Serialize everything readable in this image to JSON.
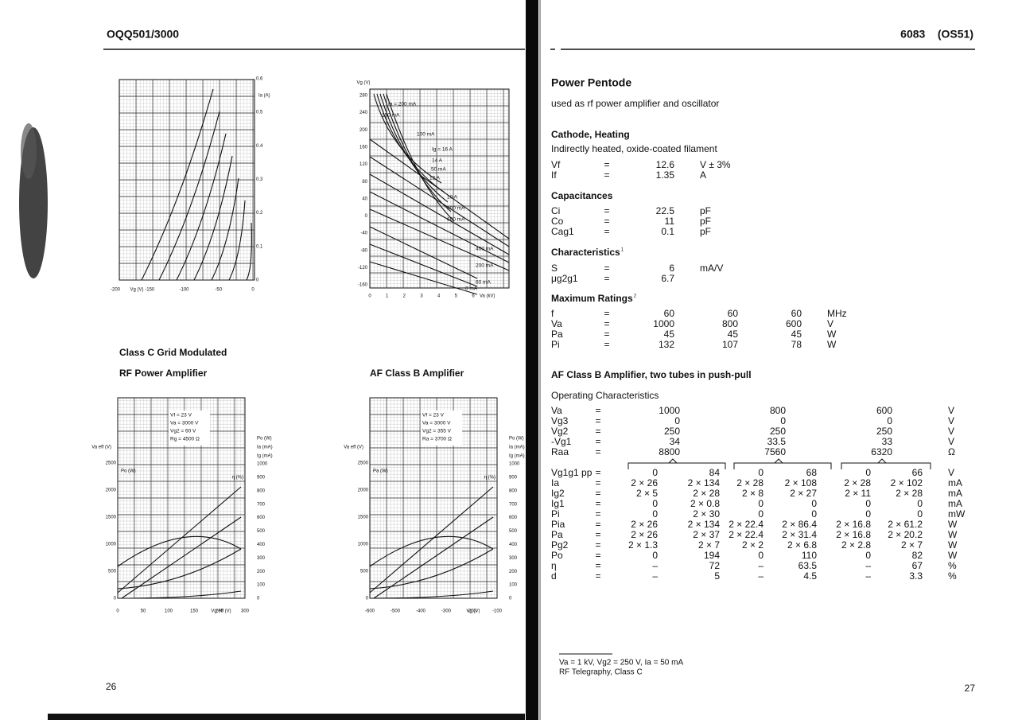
{
  "left_page": {
    "header": "OQQ501/3000",
    "page_number": "26",
    "section_title": "Class C Grid Modulated",
    "rf_title": "RF Power Amplifier",
    "af_title": "AF Class B Amplifier",
    "figures": [
      {
        "y_label": "Ia (A)",
        "x_label": "Vg (V)",
        "y_ticks_right": [
          "0.6",
          "0.5",
          "0.4",
          "0.3",
          "0.2",
          "0.1",
          "0"
        ],
        "x_ticks": [
          "-200",
          "-150",
          "-100",
          "-50",
          "0"
        ]
      },
      {
        "y_label": "Vg (V)",
        "x_label": "Va (kV)",
        "y_ticks_left": [
          "280",
          "240",
          "200",
          "160",
          "120",
          "80",
          "40",
          "0",
          "-40",
          "-80",
          "-120",
          "-160"
        ],
        "x_ticks": [
          "0",
          "1",
          "2",
          "3",
          "4",
          "5",
          "6"
        ],
        "curve_labels": [
          "Ia = 200 mA",
          "150 mA",
          "100 mA",
          "Ig = 16 A",
          "14 A",
          "50 mA",
          "12 A",
          "10 A",
          "800 mA",
          "600 mA",
          "400 mA",
          "200 mA",
          "60 mA",
          "0 mA"
        ]
      },
      {
        "y_label": "Va eff (V)",
        "x_label": "Vg eff (V)",
        "right_labels": [
          "Po (W)",
          "Ia (mA)",
          "Ig (mA)"
        ],
        "inner_labels": [
          "Po (W)",
          "η (%)"
        ],
        "y_ticks_left": [
          "2500",
          "2000",
          "1500",
          "1000",
          "500",
          "0"
        ],
        "y_ticks_right": [
          "1000",
          "900",
          "800",
          "700",
          "600",
          "500",
          "400",
          "300",
          "200",
          "100",
          "0"
        ],
        "x_ticks": [
          "0",
          "50",
          "100",
          "150",
          "200",
          "300"
        ],
        "annotation": [
          "Vf = 23 V",
          "Va = 3000 V",
          "Vg2 = 60 V",
          "Rg = 4500 Ω"
        ]
      },
      {
        "y_label": "Va eff (V)",
        "x_label": "Vg (V)",
        "right_labels": [
          "Po (W)",
          "Ia (mA)",
          "Ig (mA)"
        ],
        "inner_labels": [
          "Pa (W)",
          "η (%)"
        ],
        "y_ticks_left": [
          "2500",
          "2000",
          "1500",
          "1000",
          "500",
          "0"
        ],
        "y_ticks_right": [
          "1000",
          "900",
          "800",
          "700",
          "600",
          "500",
          "400",
          "300",
          "200",
          "100",
          "0"
        ],
        "x_ticks": [
          "-600",
          "-500",
          "-400",
          "-300",
          "-200",
          "-100"
        ],
        "annotation": [
          "Vf = 23 V",
          "Va = 3000 V",
          "Vg2 = 355 V",
          "Ra = 3700 Ω"
        ]
      }
    ]
  },
  "right_page": {
    "header": "6083    (OS51)",
    "page_number": "27",
    "title": "Power Pentode",
    "subtitle": "used as rf power amplifier and oscillator",
    "sections": [
      {
        "heading": "Cathode, Heating",
        "text": "Indirectly heated, oxide-coated filament",
        "rows": [
          [
            "Vf",
            "=",
            "12.6",
            "V ± 3%"
          ],
          [
            "If",
            "=",
            "1.35",
            "A"
          ]
        ]
      },
      {
        "heading": "Capacitances",
        "rows": [
          [
            "Ci",
            "=",
            "22.5",
            "pF"
          ],
          [
            "Co",
            "=",
            "11",
            "pF"
          ],
          [
            "Cag1",
            "=",
            "0.1",
            "pF"
          ]
        ]
      },
      {
        "heading": "Characteristics",
        "note": "1",
        "rows": [
          [
            "S",
            "=",
            "6",
            "mA/V"
          ],
          [
            "μg2g1",
            "=",
            "6.7",
            ""
          ]
        ]
      },
      {
        "heading": "Maximum Ratings",
        "note": "2",
        "rows": [
          [
            "f",
            "=",
            "60",
            "60",
            "60",
            "MHz"
          ],
          [
            "Va",
            "=",
            "1000",
            "800",
            "600",
            "V"
          ],
          [
            "Pa",
            "=",
            "45",
            "45",
            "45",
            "W"
          ],
          [
            "Pi",
            "=",
            "132",
            "107",
            "78",
            "W"
          ]
        ]
      }
    ],
    "af_heading": "AF Class B Amplifier, two tubes in push-pull",
    "operating_heading": "Operating Characteristics",
    "operating_rows": [
      [
        "Va",
        "=",
        "1000",
        "800",
        "600",
        "V"
      ],
      [
        "Vg3",
        "=",
        "0",
        "0",
        "0",
        "V"
      ],
      [
        "Vg2",
        "=",
        "250",
        "250",
        "250",
        "V"
      ],
      [
        "-Vg1",
        "=",
        "34",
        "33.5",
        "33",
        "V"
      ],
      [
        "Raa",
        "=",
        "8800",
        "7560",
        "6320",
        "Ω"
      ]
    ],
    "operating_pairs": [
      [
        "Vg1g1 pp",
        "=",
        "0",
        "84",
        "0",
        "68",
        "0",
        "66",
        "V"
      ],
      [
        "Ia",
        "=",
        "2 × 26",
        "2 × 134",
        "2 × 28",
        "2 × 108",
        "2 × 28",
        "2 × 102",
        "mA"
      ],
      [
        "Ig2",
        "=",
        "2 × 5",
        "2 × 28",
        "2 × 8",
        "2 × 27",
        "2 × 11",
        "2 × 28",
        "mA"
      ],
      [
        "Ig1",
        "=",
        "0",
        "2 × 0.8",
        "0",
        "0",
        "0",
        "0",
        "mA"
      ],
      [
        "Pi",
        "=",
        "0",
        "2 × 30",
        "0",
        "0",
        "0",
        "0",
        "mW"
      ],
      [
        "Pia",
        "=",
        "2 × 26",
        "2 × 134",
        "2 × 22.4",
        "2 × 86.4",
        "2 × 16.8",
        "2 × 61.2",
        "W"
      ],
      [
        "Pa",
        "=",
        "2 × 26",
        "2 × 37",
        "2 × 22.4",
        "2 × 31.4",
        "2 × 16.8",
        "2 × 20.2",
        "W"
      ],
      [
        "Pg2",
        "=",
        "2 × 1.3",
        "2 × 7",
        "2 × 2",
        "2 × 6.8",
        "2 × 2.8",
        "2 × 7",
        "W"
      ],
      [
        "Po",
        "=",
        "0",
        "194",
        "0",
        "110",
        "0",
        "82",
        "W"
      ],
      [
        "η",
        "=",
        "–",
        "72",
        "–",
        "63.5",
        "–",
        "67",
        "%"
      ],
      [
        "d",
        "=",
        "–",
        "5",
        "–",
        "4.5",
        "–",
        "3.3",
        "%"
      ]
    ],
    "footnotes": [
      "Va = 1 kV, Vg2 = 250 V, Ia = 50 mA",
      "RF Telegraphy, Class C"
    ]
  }
}
